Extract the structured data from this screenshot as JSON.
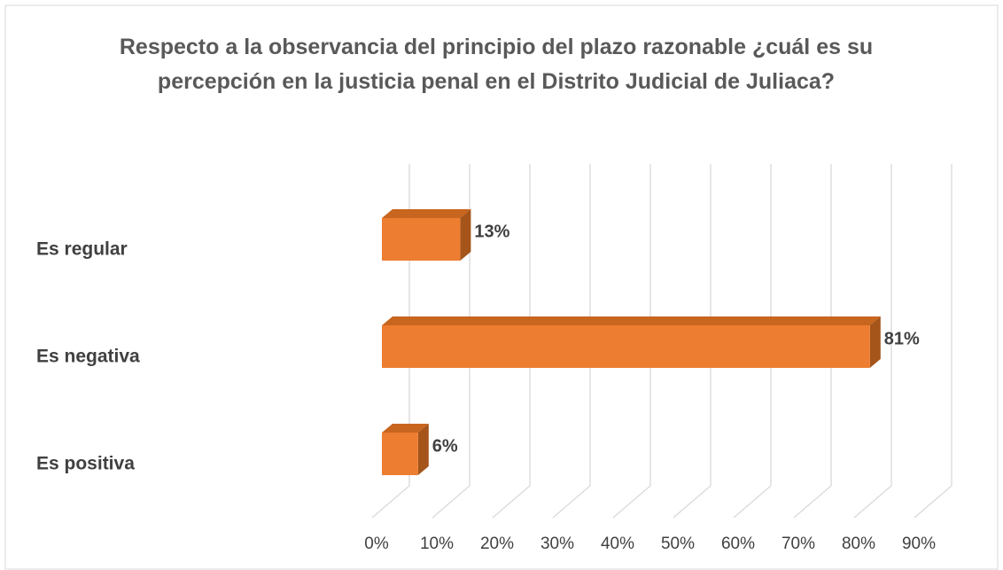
{
  "chart_data": {
    "type": "bar3d_horizontal",
    "title": "Respecto a la observancia del principio del plazo razonable ¿cuál es su percepción en la justicia penal en el Distrito Judicial de Juliaca?",
    "categories": [
      "Es regular",
      "Es negativa",
      "Es positiva"
    ],
    "values": [
      13,
      81,
      6
    ],
    "value_labels": [
      "13%",
      "81%",
      "6%"
    ],
    "color": "#ed7d31",
    "xlim": [
      0,
      90
    ],
    "xticks": [
      {
        "value": 0,
        "label": "0%"
      },
      {
        "value": 10,
        "label": "10%"
      },
      {
        "value": 20,
        "label": "20%"
      },
      {
        "value": 30,
        "label": "30%"
      },
      {
        "value": 40,
        "label": "40%"
      },
      {
        "value": 50,
        "label": "50%"
      },
      {
        "value": 60,
        "label": "60%"
      },
      {
        "value": 70,
        "label": "70%"
      },
      {
        "value": 80,
        "label": "80%"
      },
      {
        "value": 90,
        "label": "90%"
      }
    ],
    "grid": true
  }
}
